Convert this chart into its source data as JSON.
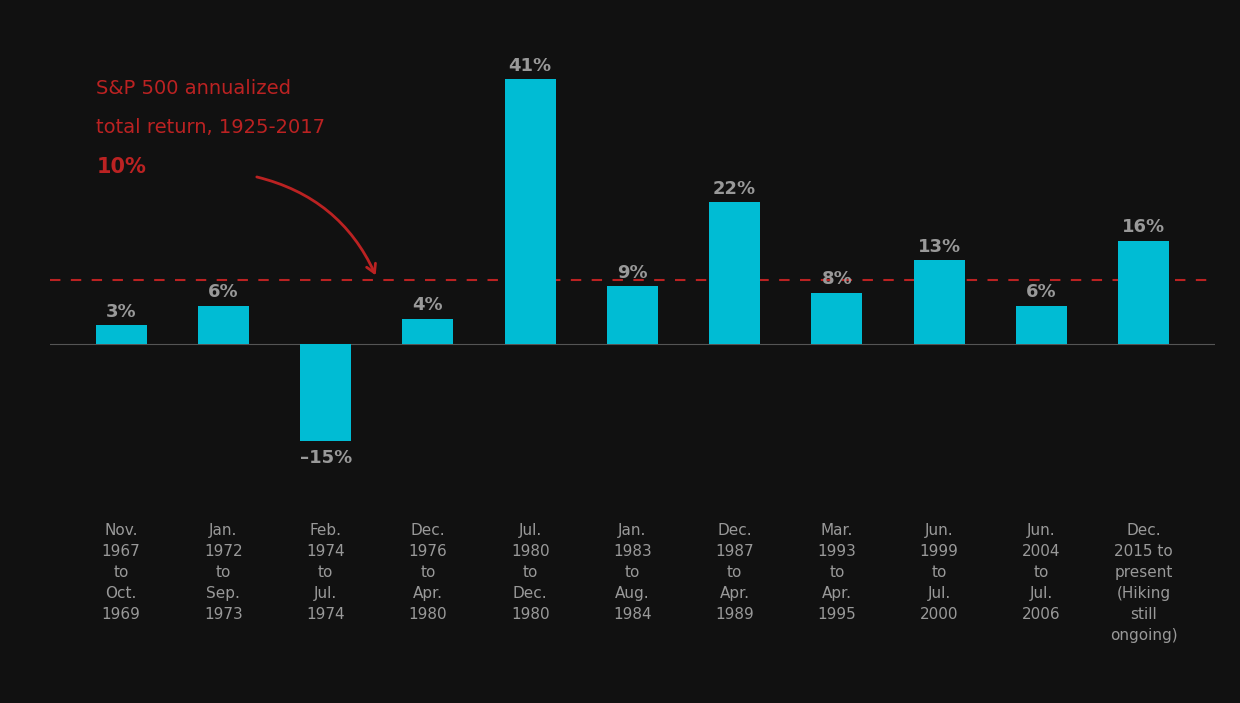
{
  "categories": [
    "Nov.\n1967\nto\nOct.\n1969",
    "Jan.\n1972\nto\nSep.\n1973",
    "Feb.\n1974\nto\nJul.\n1974",
    "Dec.\n1976\nto\nApr.\n1980",
    "Jul.\n1980\nto\nDec.\n1980",
    "Jan.\n1983\nto\nAug.\n1984",
    "Dec.\n1987\nto\nApr.\n1989",
    "Mar.\n1993\nto\nApr.\n1995",
    "Jun.\n1999\nto\nJul.\n2000",
    "Jun.\n2004\nto\nJul.\n2006",
    "Dec.\n2015 to\npresent\n(Hiking\nstill\nongoing)"
  ],
  "values": [
    3,
    6,
    -15,
    4,
    41,
    9,
    22,
    8,
    13,
    6,
    16
  ],
  "bar_color": "#00bcd4",
  "background_color": "#111111",
  "label_color": "#999999",
  "reference_line": 10,
  "reference_line_color": "#bb2222",
  "annotation_color": "#bb2222",
  "ylim": [
    -25,
    50
  ],
  "value_label_fontsize": 13,
  "tick_label_fontsize": 11,
  "bar_width": 0.5
}
